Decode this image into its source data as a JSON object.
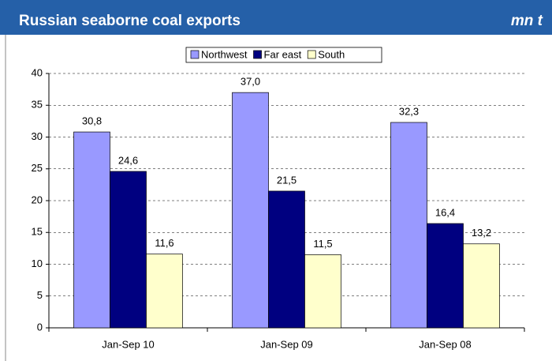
{
  "chart_data": {
    "type": "bar",
    "title": "Russian seaborne coal exports",
    "unit": "mn t",
    "categories": [
      "Jan-Sep 10",
      "Jan-Sep 09",
      "Jan-Sep 08"
    ],
    "series": [
      {
        "name": "Northwest",
        "color": "#9999ff",
        "values": [
          30.8,
          37.0,
          32.3
        ],
        "value_labels": [
          "30,8",
          "37,0",
          "32,3"
        ]
      },
      {
        "name": "Far east",
        "color": "#000080",
        "values": [
          24.6,
          21.5,
          16.4
        ],
        "value_labels": [
          "24,6",
          "21,5",
          "16,4"
        ]
      },
      {
        "name": "South",
        "color": "#ffffcc",
        "values": [
          11.6,
          11.5,
          13.2
        ],
        "value_labels": [
          "11,6",
          "11,5",
          "13,2"
        ]
      }
    ],
    "ylim": [
      0,
      40
    ],
    "yticks": [
      0,
      5,
      10,
      15,
      20,
      25,
      30,
      35,
      40
    ],
    "grid": true,
    "legend": "top"
  }
}
